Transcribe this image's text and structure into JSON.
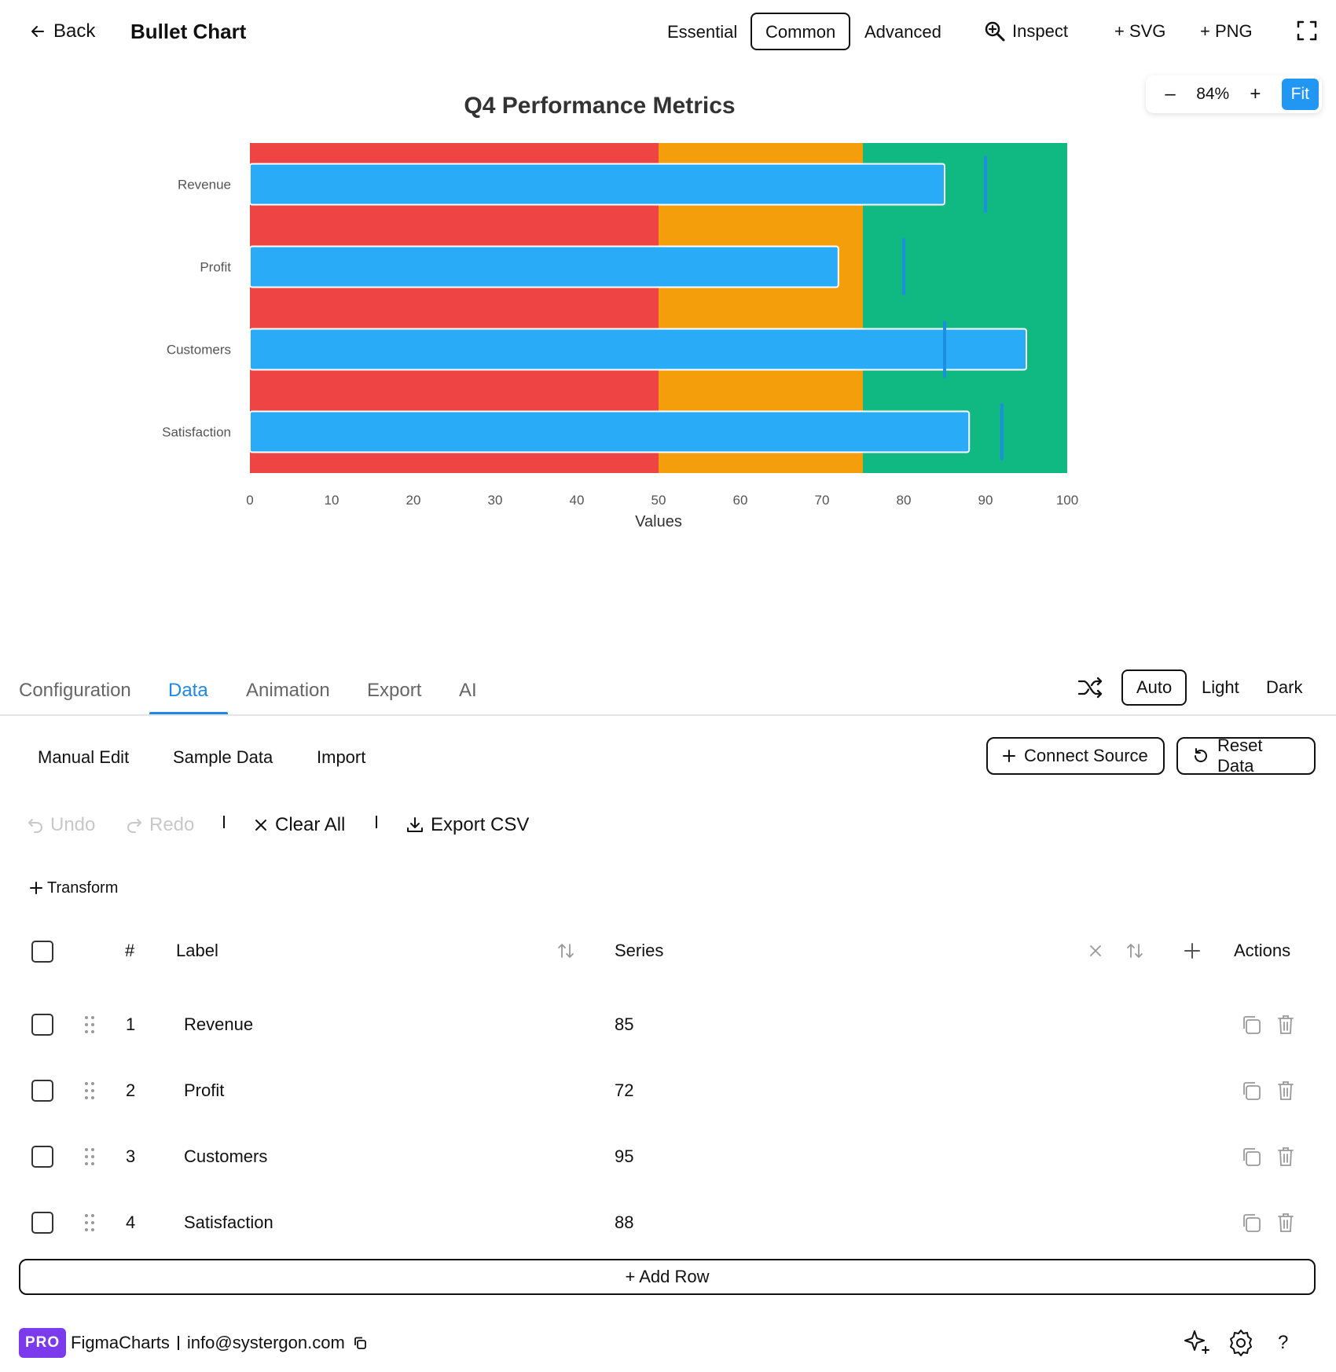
{
  "header": {
    "back_label": "Back",
    "title": "Bullet Chart",
    "modes": [
      "Essential",
      "Common",
      "Advanced"
    ],
    "active_mode": "Common",
    "inspect_label": "Inspect",
    "svg_label": "+ SVG",
    "png_label": "+ PNG"
  },
  "zoom": {
    "minus": "–",
    "value": "84%",
    "plus": "+",
    "fit_label": "Fit"
  },
  "chart_data": {
    "type": "bar",
    "subtype": "bullet",
    "orientation": "horizontal",
    "title": "Q4 Performance Metrics",
    "xlabel": "Values",
    "ylabel": "",
    "xlim": [
      0,
      100
    ],
    "x_ticks": [
      0,
      10,
      20,
      30,
      40,
      50,
      60,
      70,
      80,
      90,
      100
    ],
    "categories": [
      "Revenue",
      "Profit",
      "Customers",
      "Satisfaction"
    ],
    "values": [
      85,
      72,
      95,
      88
    ],
    "targets": [
      90,
      80,
      85,
      92
    ],
    "ranges": [
      {
        "from": 0,
        "to": 50,
        "color": "#ef4444"
      },
      {
        "from": 50,
        "to": 75,
        "color": "#f59e0b"
      },
      {
        "from": 75,
        "to": 100,
        "color": "#10b981"
      }
    ],
    "bar_color": "#29abf8",
    "target_color": "#1e8fe0",
    "grid": false,
    "legend": "none"
  },
  "panel": {
    "tabs": [
      "Configuration",
      "Data",
      "Animation",
      "Export",
      "AI"
    ],
    "active_tab": "Data",
    "themes": [
      "Auto",
      "Light",
      "Dark"
    ],
    "active_theme": "Auto",
    "sub_tabs": [
      "Manual Edit",
      "Sample Data",
      "Import"
    ],
    "connect_label": "Connect Source",
    "reset_label": "Reset Data",
    "undo_label": "Undo",
    "redo_label": "Redo",
    "clear_label": "Clear All",
    "export_csv_label": "Export CSV",
    "transform_label": "Transform"
  },
  "table": {
    "headers": {
      "num": "#",
      "label": "Label",
      "series": "Series",
      "actions": "Actions"
    },
    "rows": [
      {
        "num": "1",
        "label": "Revenue",
        "value": "85"
      },
      {
        "num": "2",
        "label": "Profit",
        "value": "72"
      },
      {
        "num": "3",
        "label": "Customers",
        "value": "95"
      },
      {
        "num": "4",
        "label": "Satisfaction",
        "value": "88"
      }
    ],
    "add_row_label": "+ Add Row"
  },
  "footer": {
    "badge": "PRO",
    "app_name": "FigmaCharts",
    "email": "info@systergon.com",
    "help": "?"
  }
}
